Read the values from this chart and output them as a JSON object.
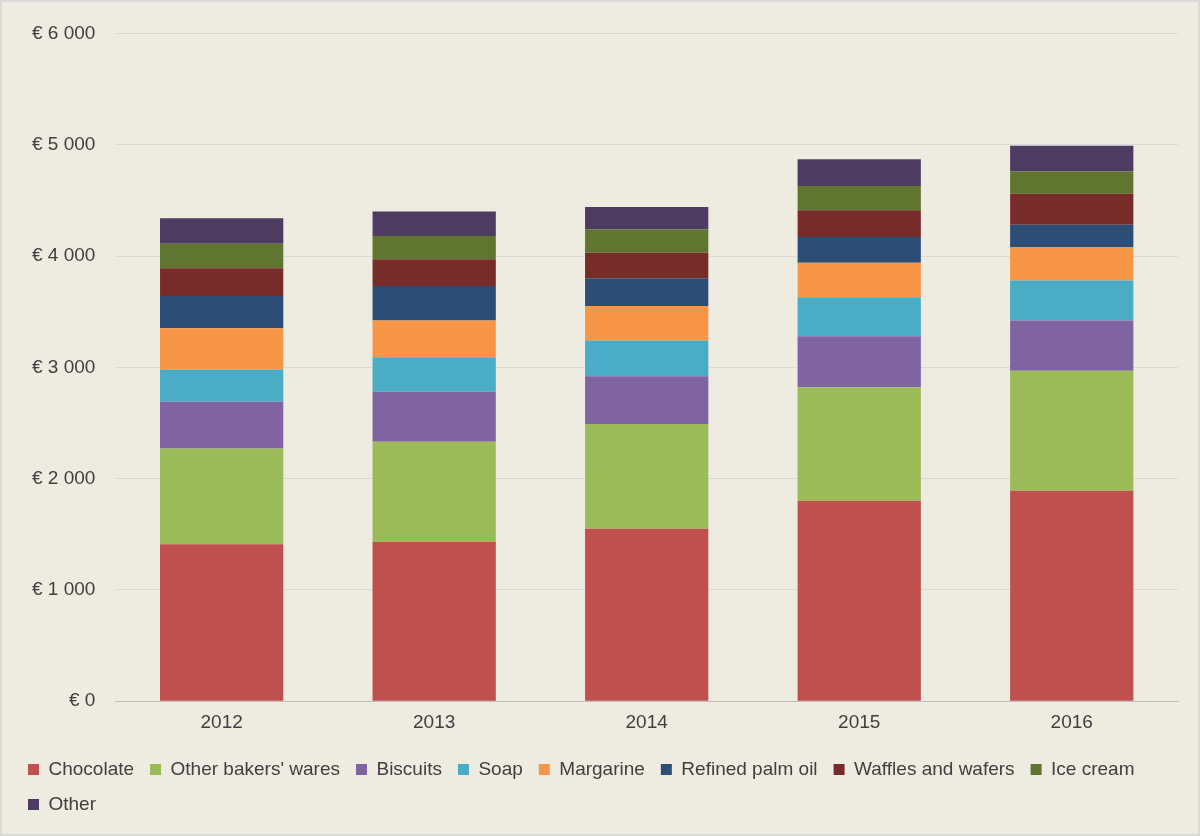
{
  "chart_data": {
    "type": "bar",
    "stacked": true,
    "categories": [
      "2012",
      "2013",
      "2014",
      "2015",
      "2016"
    ],
    "series": [
      {
        "name": "Chocolate",
        "color": "#c0504d",
        "values": [
          1410,
          1430,
          1550,
          1800,
          1890
        ]
      },
      {
        "name": "Other bakers' wares",
        "color": "#9bbb59",
        "values": [
          860,
          900,
          940,
          1020,
          1080
        ]
      },
      {
        "name": "Biscuits",
        "color": "#8064a2",
        "values": [
          420,
          450,
          430,
          460,
          450
        ]
      },
      {
        "name": "Soap",
        "color": "#4bacc6",
        "values": [
          290,
          310,
          320,
          350,
          360
        ]
      },
      {
        "name": "Margarine",
        "color": "#f79646",
        "values": [
          370,
          330,
          310,
          310,
          300
        ]
      },
      {
        "name": "Refined palm oil",
        "color": "#2c4d75",
        "values": [
          290,
          310,
          250,
          230,
          200
        ]
      },
      {
        "name": "Waffles and wafers",
        "color": "#772c2a",
        "values": [
          250,
          240,
          230,
          240,
          280
        ]
      },
      {
        "name": "Ice cream",
        "color": "#5f7530",
        "values": [
          220,
          210,
          210,
          220,
          200
        ]
      },
      {
        "name": "Other",
        "color": "#4d3b62",
        "values": [
          230,
          220,
          200,
          240,
          230
        ]
      }
    ],
    "ylim": [
      0,
      6000
    ],
    "yticks": [
      {
        "value": 0,
        "label": "€ 0"
      },
      {
        "value": 1000,
        "label": "€ 1 000"
      },
      {
        "value": 2000,
        "label": "€ 2 000"
      },
      {
        "value": 3000,
        "label": "€ 3 000"
      },
      {
        "value": 4000,
        "label": "€ 4 000"
      },
      {
        "value": 5000,
        "label": "€ 5 000"
      },
      {
        "value": 6000,
        "label": "€ 6 000"
      }
    ],
    "grid": "y",
    "legend": "bottom"
  }
}
